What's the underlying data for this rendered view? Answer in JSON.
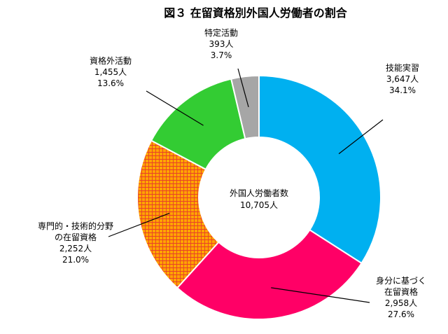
{
  "chart_data": {
    "type": "pie",
    "title": "図３ 在留資格別外国人労働者の割合",
    "center_label": [
      "外国人労働者数",
      "10,705人"
    ],
    "slices": [
      {
        "name": [
          "技能実習"
        ],
        "count": "3,647人",
        "percent_label": "34.1%",
        "value": 3647,
        "percent": 34.1,
        "color": "#00b0f0"
      },
      {
        "name": [
          "身分に基づく",
          "在留資格"
        ],
        "count": "2,958人",
        "percent_label": "27.6%",
        "value": 2958,
        "percent": 27.6,
        "color": "#ff0066"
      },
      {
        "name": [
          "専門的・技術的分野",
          "の在留資格"
        ],
        "count": "2,252人",
        "percent_label": "21.0%",
        "value": 2252,
        "percent": 21.0,
        "color": "#ffa500",
        "pattern": "crosshatch-red"
      },
      {
        "name": [
          "資格外活動"
        ],
        "count": "1,455人",
        "percent_label": "13.6%",
        "value": 1455,
        "percent": 13.6,
        "color": "#33cc33"
      },
      {
        "name": [
          "特定活動"
        ],
        "count": "393人",
        "percent_label": "3.7%",
        "value": 393,
        "percent": 3.7,
        "color": "#a6a6a6"
      }
    ]
  }
}
